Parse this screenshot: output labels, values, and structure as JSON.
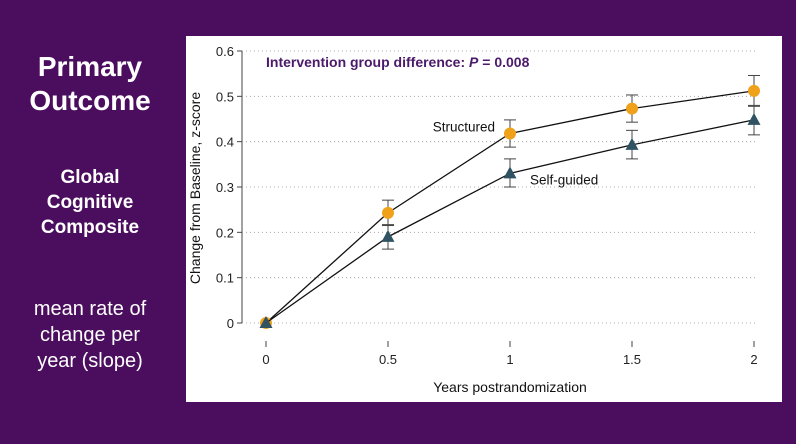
{
  "left_panel": {
    "primary_line1": "Primary",
    "primary_line2": "Outcome",
    "global_line1": "Global",
    "global_line2": "Cognitive",
    "global_line3": "Composite",
    "mean_line1": "mean rate of",
    "mean_line2": "change per",
    "mean_line3": "year (slope)"
  },
  "colors": {
    "background": "#4b0e5e",
    "structured": "#f0a11a",
    "self_guided": "#2f5363",
    "annotation": "#4b1a6a"
  },
  "chart_data": {
    "type": "line",
    "annotation": "Intervention group difference: ",
    "annotation_p": "P",
    "annotation_value": " = 0.008",
    "xlabel": "Years postrandomization",
    "ylabel": "Change from Baseline, z-score",
    "x": [
      0,
      0.5,
      1,
      1.5,
      2
    ],
    "x_tick_labels": [
      "0",
      "0.5",
      "1",
      "1.5",
      "2"
    ],
    "y_ticks": [
      0,
      0.1,
      0.2,
      0.3,
      0.4,
      0.5,
      0.6
    ],
    "y_tick_labels": [
      "0",
      "0.1",
      "0.2",
      "0.3",
      "0.4",
      "0.5",
      "0.6"
    ],
    "xlim": [
      0,
      2
    ],
    "ylim": [
      0,
      0.6
    ],
    "series": [
      {
        "name": "Structured",
        "marker": "circle",
        "values": [
          0,
          0.243,
          0.418,
          0.473,
          0.512
        ],
        "err_low": [
          0,
          0.215,
          0.388,
          0.443,
          0.478
        ],
        "err_high": [
          0,
          0.271,
          0.448,
          0.503,
          0.546
        ]
      },
      {
        "name": "Self-guided",
        "marker": "triangle",
        "values": [
          0,
          0.19,
          0.33,
          0.393,
          0.448
        ],
        "err_low": [
          0,
          0.163,
          0.3,
          0.362,
          0.415
        ],
        "err_high": [
          0,
          0.217,
          0.362,
          0.425,
          0.48
        ]
      }
    ]
  }
}
